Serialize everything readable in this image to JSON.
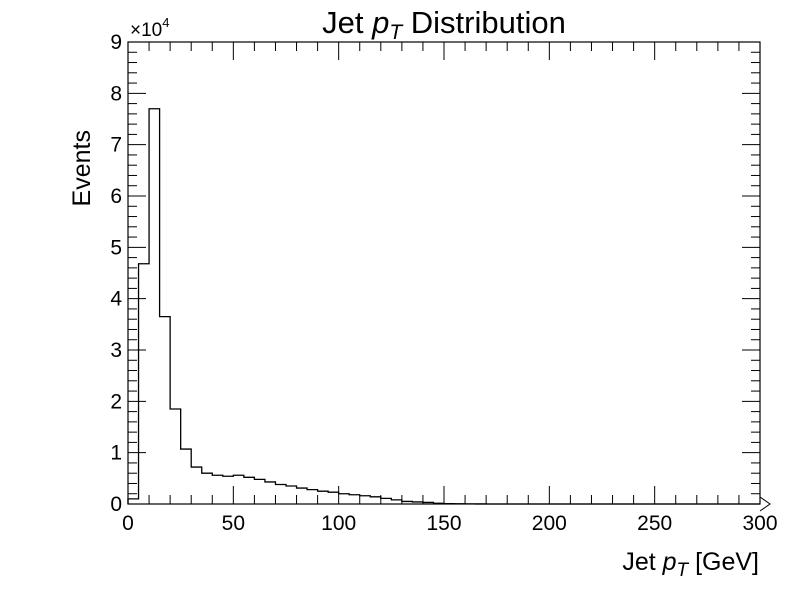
{
  "chart_data": {
    "type": "bar",
    "style": "step-histogram",
    "title": {
      "prefix": "Jet ",
      "var": "p",
      "sub": "T",
      "suffix": " Distribution"
    },
    "xlabel": {
      "prefix": "Jet ",
      "var": "p",
      "sub": "T",
      "suffix": " [GeV]"
    },
    "ylabel": "Events",
    "y_multiplier": {
      "base": "×10",
      "exponent": "4"
    },
    "xlim": [
      0,
      300
    ],
    "ylim": [
      0,
      90000
    ],
    "x_ticks": [
      0,
      50,
      100,
      150,
      200,
      250,
      300
    ],
    "y_ticks": [
      0,
      1,
      2,
      3,
      4,
      5,
      6,
      7,
      8,
      9
    ],
    "y_tick_scale": 10000,
    "bin_width": 5,
    "bin_edges_start": 0,
    "values": [
      1000,
      46800,
      77000,
      36500,
      18500,
      10700,
      7200,
      6000,
      5600,
      5400,
      5600,
      5200,
      4800,
      4300,
      3800,
      3500,
      3100,
      2800,
      2500,
      2300,
      2000,
      1800,
      1600,
      1400,
      1100,
      800,
      500,
      400,
      300,
      150,
      80,
      40,
      20,
      10,
      0,
      0,
      0,
      0,
      0,
      0,
      0,
      0,
      0,
      0,
      0,
      0,
      0,
      0,
      0,
      0,
      0,
      0,
      0,
      0,
      0,
      0,
      0,
      0,
      0,
      0
    ],
    "grid": false,
    "legend": "none"
  }
}
